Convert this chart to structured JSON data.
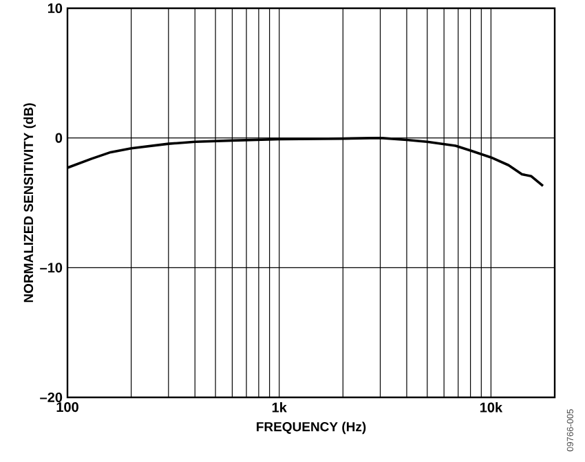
{
  "chart_data": {
    "type": "line",
    "xlabel": "FREQUENCY (Hz)",
    "ylabel": "NORMALIZED SENSITIVITY (dB)",
    "log": "x",
    "grid": true,
    "color": "#000000",
    "xlim": [
      100,
      20000
    ],
    "xticks": [
      {
        "value": 100,
        "label": "100"
      },
      {
        "value": 200,
        "label": null
      },
      {
        "value": 300,
        "label": null
      },
      {
        "value": 400,
        "label": null
      },
      {
        "value": 500,
        "label": null
      },
      {
        "value": 600,
        "label": null
      },
      {
        "value": 700,
        "label": null
      },
      {
        "value": 800,
        "label": null
      },
      {
        "value": 900,
        "label": null
      },
      {
        "value": 1000,
        "label": "1k"
      },
      {
        "value": 2000,
        "label": null
      },
      {
        "value": 3000,
        "label": null
      },
      {
        "value": 4000,
        "label": null
      },
      {
        "value": 5000,
        "label": null
      },
      {
        "value": 6000,
        "label": null
      },
      {
        "value": 7000,
        "label": null
      },
      {
        "value": 8000,
        "label": null
      },
      {
        "value": 9000,
        "label": null
      },
      {
        "value": 10000,
        "label": "10k"
      }
    ],
    "ylim": [
      -20,
      10
    ],
    "yticks": [
      {
        "value": -20,
        "label": "–20"
      },
      {
        "value": -10,
        "label": "–10"
      },
      0,
      10
    ],
    "x": [
      100,
      130,
      160,
      200,
      300,
      400,
      600,
      1000,
      2000,
      3000,
      4000,
      5000,
      6800,
      8100,
      10000,
      12100,
      14000,
      15500,
      17600
    ],
    "values": [
      -2.3,
      -1.6,
      -1.1,
      -0.8,
      -0.45,
      -0.3,
      -0.2,
      -0.1,
      -0.05,
      0,
      -0.15,
      -0.3,
      -0.6,
      -1.0,
      -1.5,
      -2.1,
      -2.8,
      -2.95,
      -3.7
    ],
    "annotations": [
      "09766-005"
    ]
  }
}
